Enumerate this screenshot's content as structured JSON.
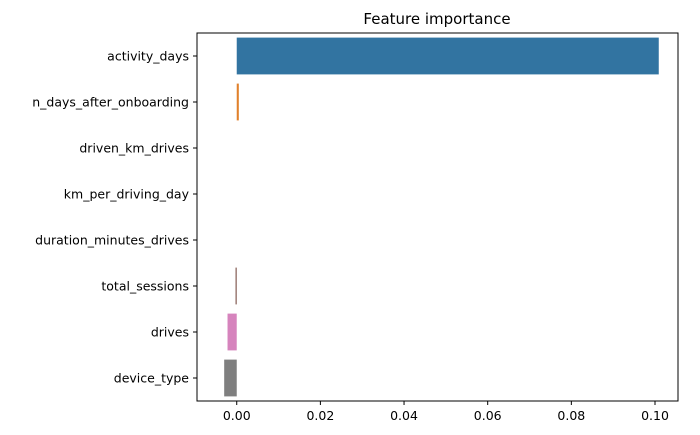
{
  "chart_data": {
    "type": "bar",
    "orientation": "horizontal",
    "title": "Feature importance",
    "xlabel": "",
    "ylabel": "",
    "xlim": [
      -0.0095,
      0.1055
    ],
    "xticks": [
      0.0,
      0.02,
      0.04,
      0.06,
      0.08,
      0.1
    ],
    "xtick_labels": [
      "0.00",
      "0.02",
      "0.04",
      "0.06",
      "0.08",
      "0.10"
    ],
    "grid": false,
    "categories": [
      "activity_days",
      "n_days_after_onboarding",
      "driven_km_drives",
      "km_per_driving_day",
      "duration_minutes_drives",
      "total_sessions",
      "drives",
      "device_type"
    ],
    "values": [
      0.1009,
      0.0005,
      0.0,
      0.0,
      0.0,
      -0.0002,
      -0.0022,
      -0.003
    ],
    "colors": [
      "#3274a1",
      "#e1812c",
      "#3a923a",
      "#c03d3e",
      "#9372b2",
      "#845b53",
      "#d684bd",
      "#7f7f7f"
    ]
  }
}
